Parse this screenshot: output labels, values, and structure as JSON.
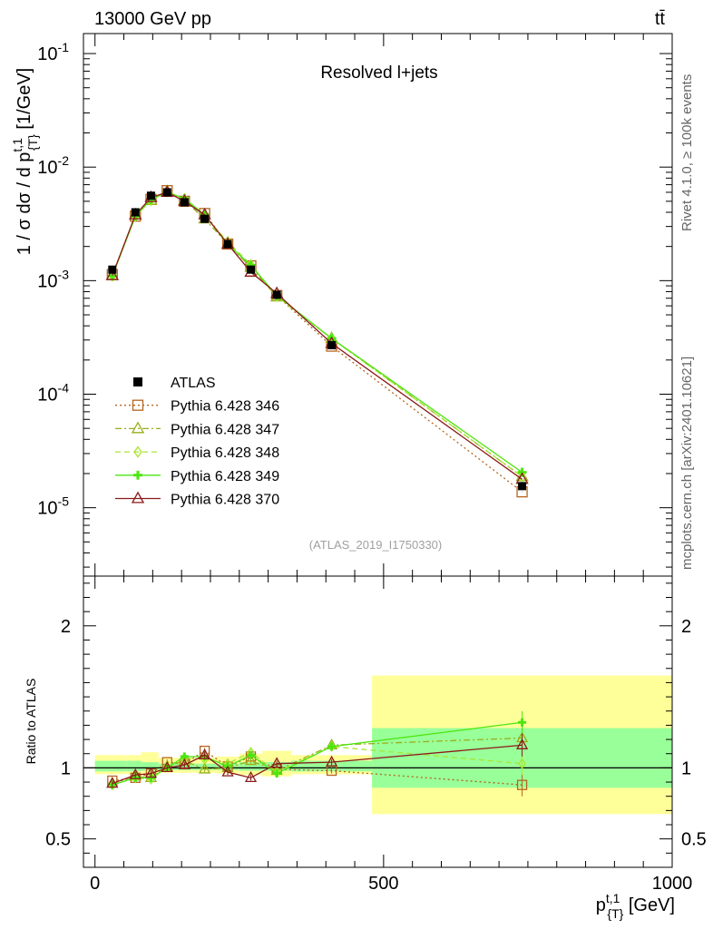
{
  "header": {
    "energy_label": "13000 GeV pp",
    "process_label": "tt̄"
  },
  "side": {
    "rivet_label": "Rivet 4.1.0, ≥ 100k events",
    "site_label": "mcplots.cern.ch [arXiv:2401.10621]"
  },
  "chart_data": [
    {
      "id": "main",
      "type": "line",
      "title": "Resolved l+jets",
      "analysis_label": "(ATLAS_2019_I1750330)",
      "ylabel": "1 / σ dσ / d p_{T}^{t,1} [1/GeV]",
      "yscale": "log",
      "xlim": [
        -20,
        1000
      ],
      "ylim": [
        2.5e-06,
        0.15
      ],
      "yticks": [
        {
          "value": 0.1,
          "label": "10^-1"
        },
        {
          "value": 0.01,
          "label": "10^-2"
        },
        {
          "value": 0.001,
          "label": "10^-3"
        },
        {
          "value": 0.0001,
          "label": "10^-4"
        },
        {
          "value": 1e-05,
          "label": "10^-5"
        }
      ],
      "x": [
        30,
        70,
        97,
        125,
        155,
        190,
        230,
        270,
        315,
        410,
        740
      ],
      "data": {
        "name": "ATLAS",
        "values": [
          0.00125,
          0.004,
          0.0056,
          0.006,
          0.0049,
          0.0035,
          0.0021,
          0.00125,
          0.00075,
          0.00027,
          1.55e-05
        ]
      },
      "series": [
        {
          "name": "Pythia 6.428 346",
          "color": "#b5651d",
          "marker": "square",
          "dash": "2,3",
          "values": [
            0.00113,
            0.0037,
            0.0052,
            0.0062,
            0.005,
            0.0039,
            0.0021,
            0.00135,
            0.00074,
            0.000265,
            1.38e-05
          ]
        },
        {
          "name": "Pythia 6.428 347",
          "color": "#9aad1a",
          "marker": "triangle",
          "dash": "7,3,2,3",
          "values": [
            0.00111,
            0.0038,
            0.0051,
            0.0061,
            0.0051,
            0.0035,
            0.0021,
            0.00131,
            0.00072,
            0.00031,
            1.88e-05
          ]
        },
        {
          "name": "Pythia 6.428 348",
          "color": "#a8e632",
          "marker": "diamond",
          "dash": "6,4",
          "values": [
            0.0011,
            0.0037,
            0.0051,
            0.0061,
            0.0052,
            0.0037,
            0.0022,
            0.00138,
            0.00073,
            0.00031,
            1.88e-05
          ]
        },
        {
          "name": "Pythia 6.428 349",
          "color": "#4ce60f",
          "marker": "plus",
          "dash": "",
          "values": [
            0.0011,
            0.0037,
            0.0052,
            0.006,
            0.0053,
            0.0038,
            0.0021,
            0.00136,
            0.00074,
            0.00031,
            2.05e-05
          ]
        },
        {
          "name": "Pythia 6.428 370",
          "color": "#8b1a1a",
          "marker": "triangle",
          "dash": "",
          "values": [
            0.00111,
            0.0038,
            0.0054,
            0.006,
            0.005,
            0.0038,
            0.0021,
            0.00119,
            0.00077,
            0.00028,
            1.78e-05
          ]
        }
      ],
      "legend": [
        "ATLAS",
        "Pythia 6.428 346",
        "Pythia 6.428 347",
        "Pythia 6.428 348",
        "Pythia 6.428 349",
        "Pythia 6.428 370"
      ],
      "legend_position": "bottom-left"
    },
    {
      "id": "ratio",
      "type": "line",
      "ylabel": "Ratio to ATLAS",
      "xlabel": "p_{T}^{t,1} [GeV]",
      "xlim": [
        -20,
        1000
      ],
      "ylim": [
        0.3,
        2.35
      ],
      "xticks": [
        {
          "value": 0,
          "label": "0"
        },
        {
          "value": 500,
          "label": "500"
        },
        {
          "value": 1000,
          "label": "1000"
        }
      ],
      "yticks": [
        {
          "value": 0.5,
          "label": "0.5"
        },
        {
          "value": 1,
          "label": "1"
        },
        {
          "value": 2,
          "label": "2"
        }
      ],
      "bin_edges": [
        0,
        55,
        80,
        110,
        140,
        170,
        210,
        250,
        290,
        340,
        480,
        1000
      ],
      "stat_band": [
        0.05,
        0.05,
        0.04,
        0.03,
        0.03,
        0.03,
        0.03,
        0.04,
        0.04,
        0.05,
        0.28
      ],
      "total_band": [
        0.09,
        0.09,
        0.11,
        0.07,
        0.07,
        0.07,
        0.08,
        0.1,
        0.12,
        0.09,
        0.65
      ],
      "x": [
        30,
        70,
        97,
        125,
        155,
        190,
        230,
        270,
        315,
        410,
        740
      ],
      "series": [
        {
          "name": "Pythia 6.428 346",
          "color": "#b5651d",
          "marker": "square",
          "dash": "2,3",
          "values": [
            0.91,
            0.93,
            0.96,
            1.04,
            1.03,
            1.12,
            1.01,
            1.08,
            0.99,
            0.98,
            0.88
          ]
        },
        {
          "name": "Pythia 6.428 347",
          "color": "#9aad1a",
          "marker": "triangle",
          "dash": "7,3,2,3",
          "values": [
            0.89,
            0.94,
            0.93,
            1.01,
            1.05,
            0.99,
            1.0,
            1.05,
            0.98,
            1.16,
            1.21
          ]
        },
        {
          "name": "Pythia 6.428 348",
          "color": "#a8e632",
          "marker": "diamond",
          "dash": "6,4",
          "values": [
            0.88,
            0.93,
            0.92,
            1.01,
            1.07,
            1.06,
            1.03,
            1.11,
            0.97,
            1.15,
            1.03
          ]
        },
        {
          "name": "Pythia 6.428 349",
          "color": "#4ce60f",
          "marker": "plus",
          "dash": "",
          "values": [
            0.88,
            0.93,
            0.93,
            1.0,
            1.08,
            1.08,
            1.01,
            1.09,
            0.96,
            1.15,
            1.32
          ]
        },
        {
          "name": "Pythia 6.428 370",
          "color": "#8b1a1a",
          "marker": "triangle",
          "dash": "",
          "values": [
            0.89,
            0.95,
            0.96,
            1.0,
            1.02,
            1.09,
            0.97,
            0.93,
            1.03,
            1.04,
            1.16
          ]
        }
      ]
    }
  ]
}
